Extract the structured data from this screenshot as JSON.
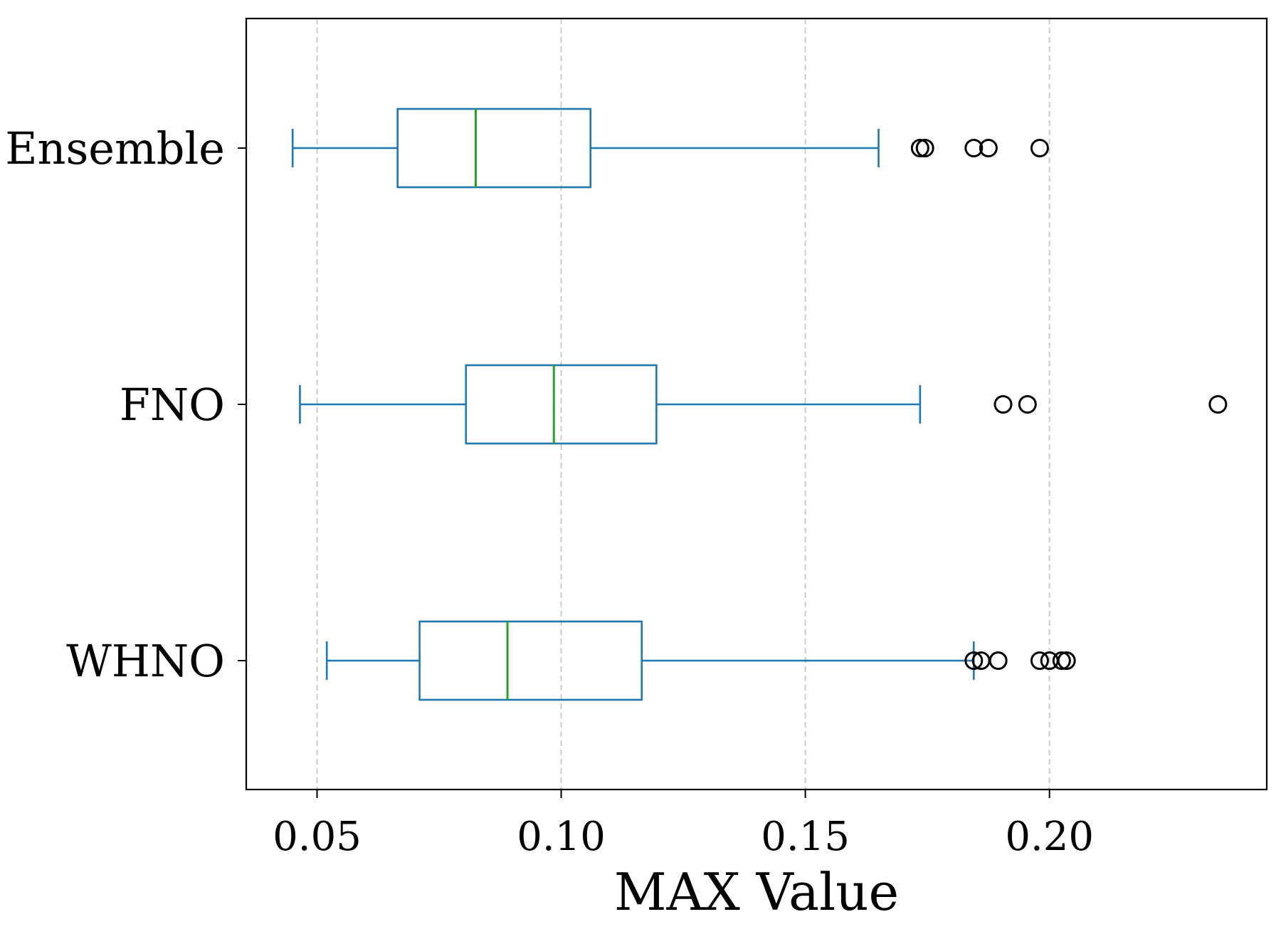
{
  "chart_data": {
    "type": "boxplot",
    "orientation": "horizontal",
    "xlabel": "MAX Value",
    "ylabel": "",
    "title": "",
    "xlim": [
      0.0355,
      0.2445
    ],
    "xticks": [
      0.05,
      0.1,
      0.15,
      0.2
    ],
    "xtick_labels": [
      "0.05",
      "0.10",
      "0.15",
      "0.20"
    ],
    "grid": "x, dashed",
    "categories": [
      "Ensemble",
      "FNO",
      "WHNO"
    ],
    "series": [
      {
        "name": "Ensemble",
        "whisker_low": 0.045,
        "q1": 0.0665,
        "median": 0.0825,
        "q3": 0.106,
        "whisker_high": 0.165,
        "outliers": [
          0.1735,
          0.1745,
          0.1845,
          0.1875,
          0.198
        ]
      },
      {
        "name": "FNO",
        "whisker_low": 0.0465,
        "q1": 0.0805,
        "median": 0.0985,
        "q3": 0.1195,
        "whisker_high": 0.1735,
        "outliers": [
          0.1905,
          0.1955,
          0.2345
        ]
      },
      {
        "name": "WHNO",
        "whisker_low": 0.052,
        "q1": 0.071,
        "median": 0.089,
        "q3": 0.1165,
        "whisker_high": 0.1845,
        "outliers": [
          0.1845,
          0.186,
          0.1895,
          0.198,
          0.2,
          0.2025,
          0.2035
        ]
      }
    ],
    "colors": {
      "box": "#1f77b4",
      "median": "#2ca02c",
      "outlier": "#000000",
      "grid": "#cccccc"
    }
  }
}
